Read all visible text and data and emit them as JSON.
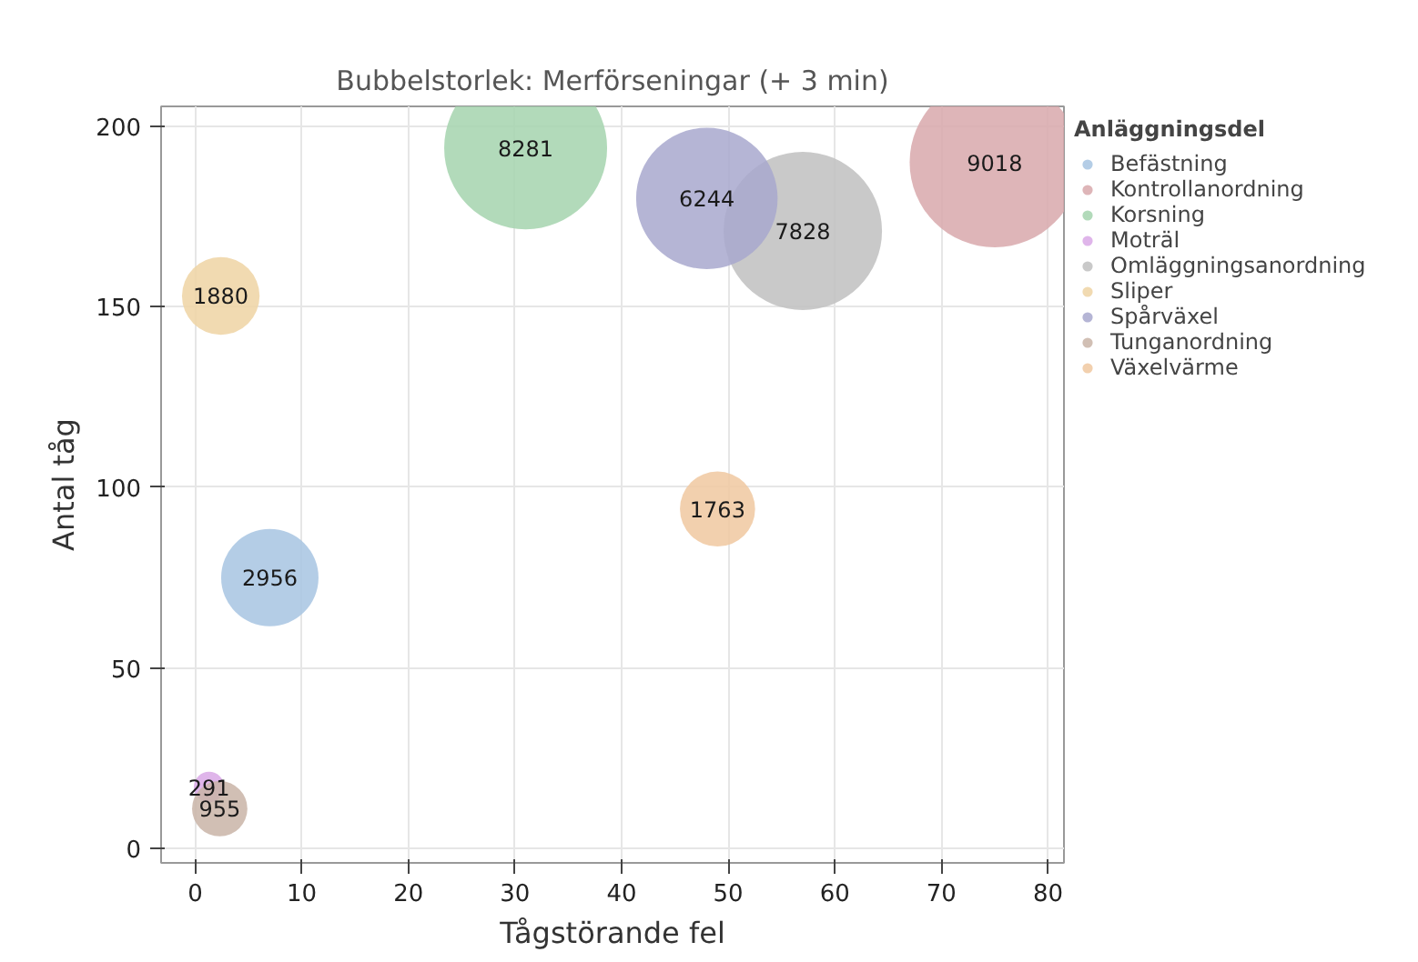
{
  "chart_data": {
    "type": "bubble",
    "title": "Bubbelstorlek: Merförseningar (+ 3 min)",
    "xlabel": "Tågstörande fel",
    "ylabel": "Antal tåg",
    "legend_title": "Anläggningsdel",
    "legend": "right",
    "grid": true,
    "xlim": [
      -3.2,
      81.5
    ],
    "ylim": [
      -4,
      205.5
    ],
    "xticks": [
      0,
      10,
      20,
      30,
      40,
      50,
      60,
      70,
      80
    ],
    "yticks": [
      0,
      50,
      100,
      150,
      200
    ],
    "series": [
      {
        "name": "Befästning",
        "color": "#a7c4e2",
        "x": [
          7
        ],
        "values": [
          75
        ],
        "sizes": [
          2956
        ],
        "value_labels": [
          "2956"
        ]
      },
      {
        "name": "Kontrollanordning",
        "color": "#d8a8ab",
        "x": [
          75
        ],
        "values": [
          190
        ],
        "sizes": [
          9018
        ],
        "value_labels": [
          "9018"
        ]
      },
      {
        "name": "Korsning",
        "color": "#a5d4ae",
        "x": [
          31
        ],
        "values": [
          194
        ],
        "sizes": [
          8281
        ],
        "value_labels": [
          "8281"
        ]
      },
      {
        "name": "Moträl",
        "color": "#d9a8e6",
        "x": [
          1.3
        ],
        "values": [
          17
        ],
        "sizes": [
          291
        ],
        "value_labels": [
          "291"
        ]
      },
      {
        "name": "Omläggningsanordning",
        "color": "#c0c0c0",
        "x": [
          57
        ],
        "values": [
          171
        ],
        "sizes": [
          7828
        ],
        "value_labels": [
          "7828"
        ]
      },
      {
        "name": "Sliper",
        "color": "#efd3a3",
        "x": [
          2.4
        ],
        "values": [
          153
        ],
        "sizes": [
          1880
        ],
        "value_labels": [
          "1880"
        ]
      },
      {
        "name": "Spårväxel",
        "color": "#a8a8ce",
        "x": [
          48
        ],
        "values": [
          180
        ],
        "sizes": [
          6244
        ],
        "value_labels": [
          "6244"
        ]
      },
      {
        "name": "Tunganordning",
        "color": "#c9b4a7",
        "x": [
          2.3
        ],
        "values": [
          11
        ],
        "sizes": [
          955
        ],
        "value_labels": [
          "955"
        ]
      },
      {
        "name": "Växelvärme",
        "color": "#f0c8a0",
        "x": [
          49
        ],
        "values": [
          94
        ],
        "sizes": [
          1763
        ],
        "value_labels": [
          "1763"
        ]
      }
    ]
  }
}
